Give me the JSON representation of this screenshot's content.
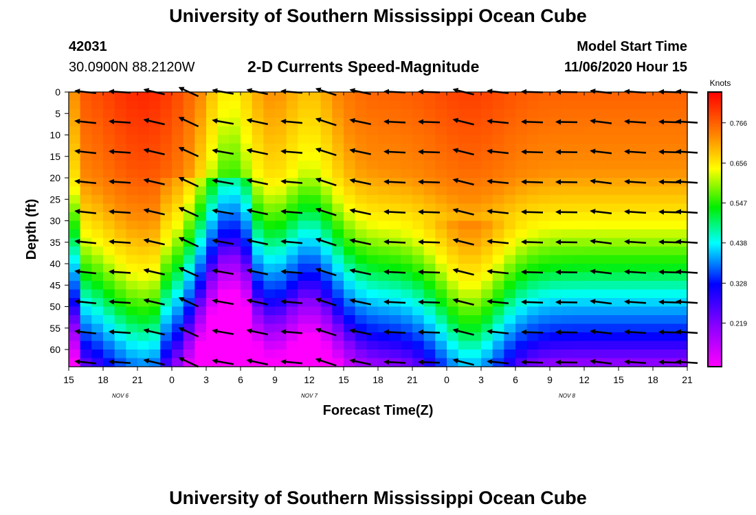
{
  "header": {
    "title_top": "University of Southern Mississippi Ocean Cube",
    "title_bottom": "University of Southern Mississippi Ocean Cube",
    "station_id": "42031",
    "station_location": "30.0900N 88.2120W",
    "chart_title": "2-D Currents Speed-Magnitude",
    "model_start_label": "Model Start Time",
    "model_start_value": "11/06/2020 Hour 15"
  },
  "chart_data": {
    "type": "heatmap",
    "title": "2-D Currents Speed-Magnitude",
    "xlabel": "Forecast Time(Z)",
    "ylabel": "Depth (ft)",
    "x_tick_labels": [
      "15",
      "18",
      "21",
      "0",
      "3",
      "6",
      "9",
      "12",
      "15",
      "18",
      "21",
      "0",
      "3",
      "6",
      "9",
      "12",
      "15",
      "18",
      "21"
    ],
    "x_hours": [
      0,
      3,
      6,
      9,
      12,
      15,
      18,
      21,
      24,
      27,
      30,
      33,
      36,
      39,
      42,
      45,
      48,
      51,
      54
    ],
    "xlim": [
      0,
      54
    ],
    "day_labels": [
      {
        "text": "NOV 6",
        "hour": 4.5
      },
      {
        "text": "NOV 7",
        "hour": 21
      },
      {
        "text": "NOV 8",
        "hour": 43.5
      }
    ],
    "y_ticks": [
      0,
      5,
      10,
      15,
      20,
      25,
      30,
      35,
      40,
      45,
      50,
      55,
      60
    ],
    "ylim": [
      0,
      64
    ],
    "colorbar": {
      "title": "Knots",
      "tick_values": [
        "0.766",
        "0.656",
        "0.547",
        "0.438",
        "0.328",
        "0.219"
      ],
      "range": [
        0.1,
        0.85
      ]
    },
    "vector_hours": [
      1.5,
      4.5,
      7.5,
      10.5,
      13.5,
      16.5,
      19.5,
      22.5,
      25.5,
      28.5,
      31.5,
      34.5,
      37.5,
      40.5,
      43.5,
      46.5,
      49.5,
      52.5,
      54
    ],
    "vector_depths": [
      0,
      7,
      14,
      21,
      28,
      35,
      42,
      49,
      56,
      63
    ],
    "vector_angles_deg": [
      -174,
      -176,
      -167,
      -155,
      -170,
      -168,
      -175,
      -162,
      -168,
      -177,
      -178,
      -166,
      -174,
      -178,
      -179,
      -173,
      -176,
      -178,
      -176
    ],
    "speed_profile_notes": "surface high speed orange/red, decreasing with depth to purple"
  }
}
